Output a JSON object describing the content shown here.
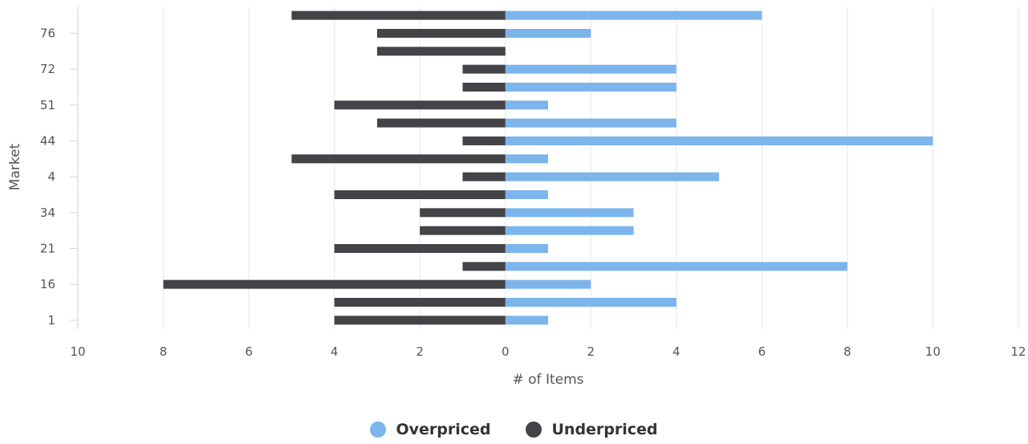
{
  "chart_data": {
    "type": "bar",
    "orientation": "horizontal",
    "xlabel": "# of Items",
    "ylabel": "Market",
    "xlim": [
      -10,
      12
    ],
    "x_ticks": [
      -10,
      -8,
      -6,
      -4,
      -2,
      0,
      2,
      4,
      6,
      8,
      10,
      12
    ],
    "x_tick_labels": [
      "10",
      "8",
      "6",
      "4",
      "2",
      "0",
      "2",
      "4",
      "6",
      "8",
      "10",
      "12"
    ],
    "categories": [
      "1",
      "",
      "16",
      "",
      "21",
      "",
      "34",
      "",
      "4",
      "",
      "44",
      "",
      "51",
      "",
      "72",
      "",
      "76",
      ""
    ],
    "grid": "vertical",
    "legend_position": "bottom-center",
    "series": [
      {
        "name": "Overpriced",
        "color": "#7cb5ec",
        "values": [
          1,
          4,
          2,
          8,
          1,
          3,
          3,
          1,
          5,
          1,
          10,
          4,
          1,
          4,
          4,
          0,
          2,
          6
        ]
      },
      {
        "name": "Underpriced",
        "color": "#434348",
        "values": [
          -4,
          -4,
          -8,
          -1,
          -4,
          -2,
          -2,
          -4,
          -1,
          -5,
          -1,
          -3,
          -4,
          -1,
          -1,
          -3,
          -3,
          -5
        ]
      }
    ]
  }
}
